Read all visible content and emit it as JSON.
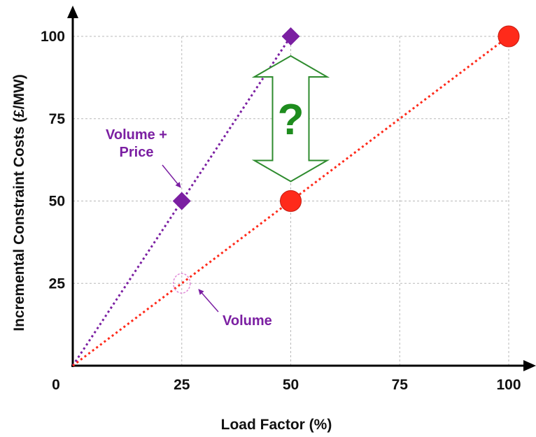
{
  "chart_data": {
    "type": "line",
    "title": "",
    "xlabel": "Load Factor (%)",
    "ylabel": "Incremental Constraint Costs (£/MW)",
    "xlim": [
      0,
      100
    ],
    "ylim": [
      0,
      100
    ],
    "x_ticks": [
      25,
      50,
      75,
      100
    ],
    "y_ticks": [
      25,
      50,
      75,
      100
    ],
    "origin_label": "0",
    "grid": true,
    "series": [
      {
        "color": "#7b1fa2",
        "marker": "diamond",
        "line_style": "dotted",
        "points": [
          {
            "x": 0,
            "y": 0,
            "marker": false
          },
          {
            "x": 25,
            "y": 50,
            "marker": true
          },
          {
            "x": 50,
            "y": 100,
            "marker": true
          }
        ]
      },
      {
        "color": "#ff2a1a",
        "marker": "circle",
        "line_style": "dotted",
        "points": [
          {
            "x": 0,
            "y": 0,
            "marker": false
          },
          {
            "x": 50,
            "y": 50,
            "marker": true
          },
          {
            "x": 100,
            "y": 100,
            "marker": true
          }
        ]
      }
    ],
    "ghost_marker": {
      "x": 25,
      "y": 25,
      "color": "#e08ad8"
    },
    "annotations": [
      {
        "id": "volume-price",
        "lines": [
          "Volume +",
          "Price"
        ],
        "color": "#7b1fa2",
        "points_to": {
          "x": 25,
          "y": 50
        }
      },
      {
        "id": "volume",
        "lines": [
          "Volume"
        ],
        "color": "#7b1fa2",
        "points_to": {
          "x": 25,
          "y": 25
        }
      }
    ],
    "double_arrow": {
      "x": 50,
      "y_from": 50,
      "y_to": 100,
      "color": "#2e8b2e",
      "label": "?"
    }
  }
}
